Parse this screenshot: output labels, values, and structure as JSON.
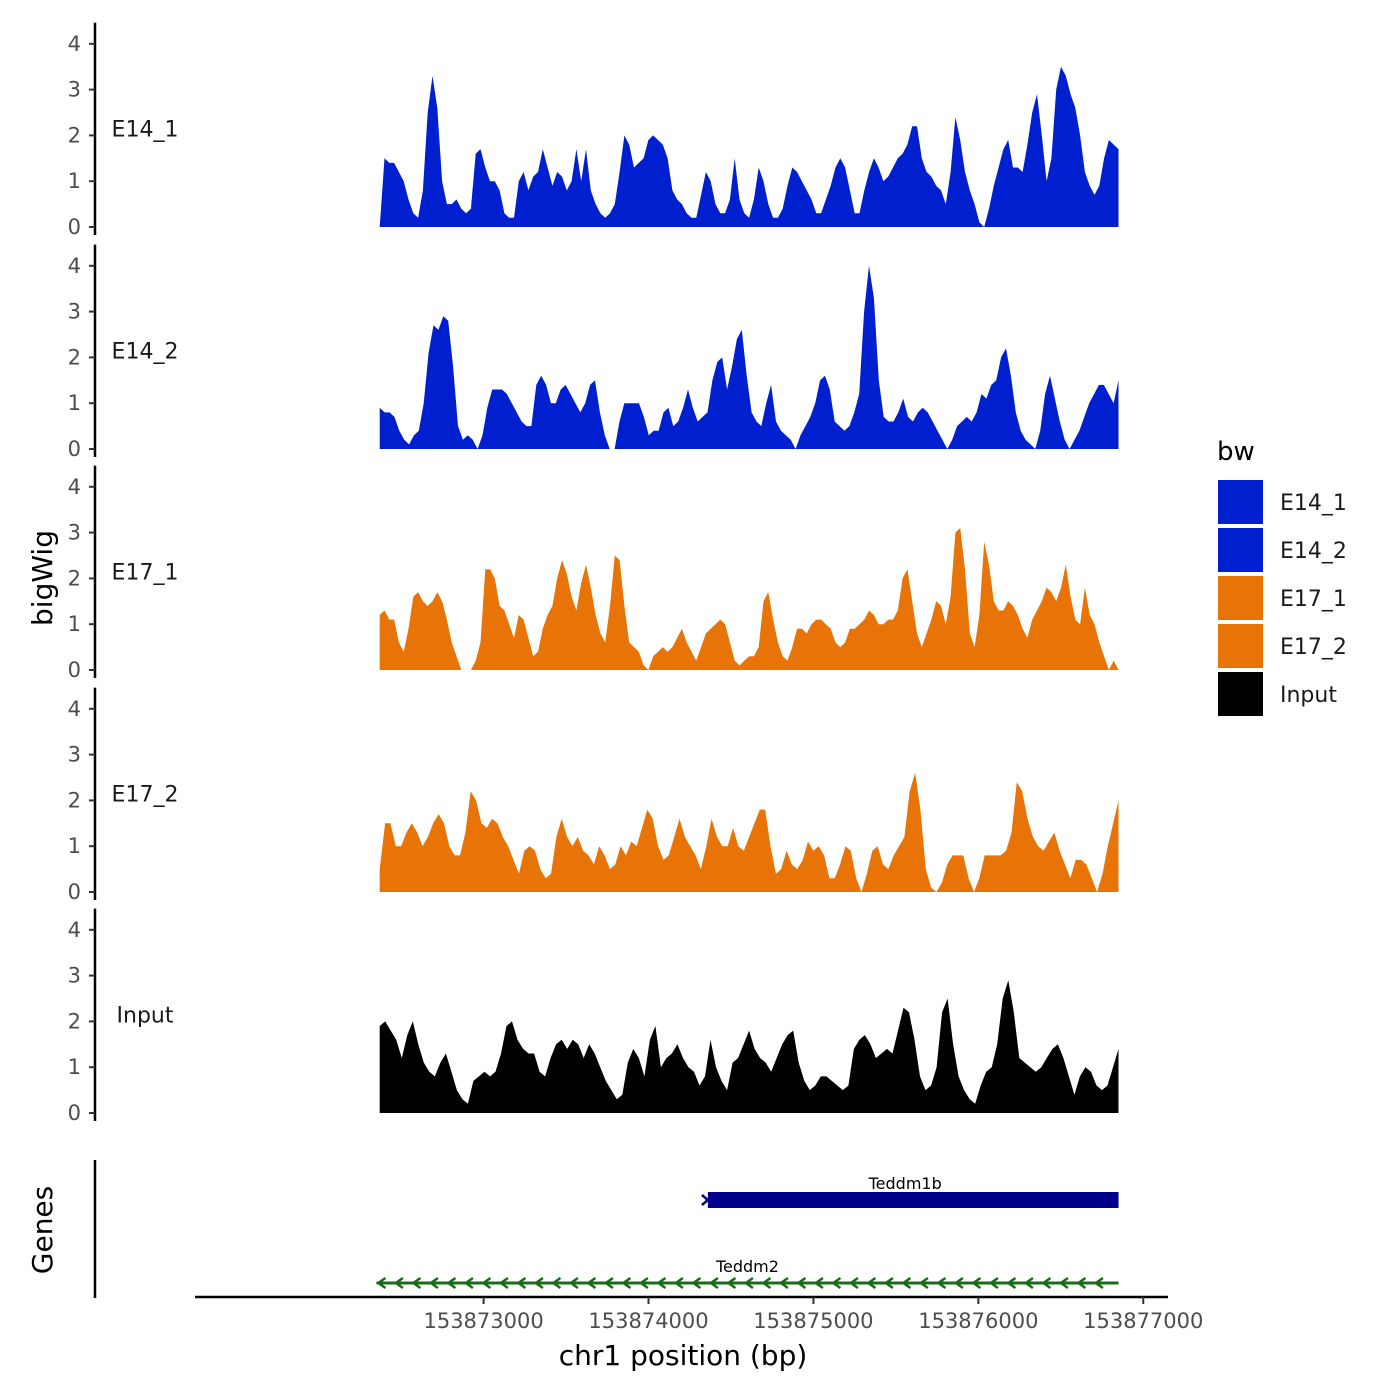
{
  "chart_data": {
    "type": "area",
    "ylabel": "bigWig",
    "xlabel": "chr1 position (bp)",
    "ylim": [
      0,
      4.2
    ],
    "y_ticks": [
      "0",
      "1",
      "2",
      "3",
      "4"
    ],
    "xlim": [
      153871250,
      153877150
    ],
    "x_ticks": [
      {
        "value": 153873000,
        "label": "153873000"
      },
      {
        "value": 153874000,
        "label": "153874000"
      },
      {
        "value": 153875000,
        "label": "153875000"
      },
      {
        "value": 153876000,
        "label": "153876000"
      },
      {
        "value": 153877000,
        "label": "153877000"
      }
    ],
    "x_start": 153872370,
    "x_end": 153876850,
    "series": [
      {
        "name": "E14_1",
        "label": "E14_1",
        "color": "#0020D0",
        "values": [
          0,
          1.5,
          1.4,
          1.4,
          1.2,
          1.0,
          0.6,
          0.3,
          0.2,
          0.8,
          2.5,
          3.3,
          2.6,
          1.0,
          0.5,
          0.5,
          0.6,
          0.4,
          0.3,
          0.4,
          1.6,
          1.7,
          1.3,
          1.0,
          1.0,
          0.8,
          0.3,
          0.2,
          0.2,
          1.0,
          1.2,
          0.8,
          1.1,
          1.2,
          1.7,
          1.3,
          0.9,
          1.2,
          1.1,
          0.8,
          1.0,
          1.7,
          1.0,
          1.7,
          0.8,
          0.5,
          0.3,
          0.2,
          0.3,
          0.5,
          1.2,
          2.0,
          1.8,
          1.3,
          1.4,
          1.5,
          1.9,
          2.0,
          1.9,
          1.8,
          1.5,
          0.8,
          0.6,
          0.5,
          0.3,
          0.2,
          0.2,
          0.7,
          1.2,
          1.0,
          0.5,
          0.3,
          0.3,
          0.6,
          1.5,
          0.6,
          0.3,
          0.2,
          0.6,
          1.3,
          1.0,
          0.5,
          0.2,
          0.2,
          0.4,
          0.9,
          1.3,
          1.2,
          1.0,
          0.8,
          0.6,
          0.3,
          0.3,
          0.6,
          0.9,
          1.3,
          1.5,
          1.3,
          0.8,
          0.3,
          0.3,
          0.8,
          1.2,
          1.5,
          1.3,
          1.0,
          1.1,
          1.3,
          1.5,
          1.6,
          1.8,
          2.2,
          2.2,
          1.5,
          1.2,
          1.1,
          0.9,
          0.8,
          0.5,
          1.2,
          2.4,
          1.9,
          1.2,
          0.8,
          0.5,
          0.1,
          0,
          0.4,
          0.9,
          1.3,
          1.7,
          1.9,
          1.3,
          1.3,
          1.2,
          1.8,
          2.5,
          2.9,
          2.0,
          1.0,
          1.5,
          3.0,
          3.5,
          3.3,
          2.9,
          2.6,
          2.0,
          1.2,
          0.9,
          0.7,
          0.9,
          1.5,
          1.9,
          1.8,
          1.7
        ]
      },
      {
        "name": "E14_2",
        "label": "E14_2",
        "color": "#0020D0",
        "values": [
          0.9,
          0.8,
          0.8,
          0.7,
          0.4,
          0.2,
          0.1,
          0.3,
          0.4,
          1.0,
          2.1,
          2.7,
          2.6,
          2.9,
          2.8,
          1.8,
          0.5,
          0.2,
          0.3,
          0.2,
          0,
          0.3,
          0.9,
          1.3,
          1.3,
          1.3,
          1.2,
          1.0,
          0.8,
          0.6,
          0.5,
          0.5,
          1.4,
          1.6,
          1.4,
          1.0,
          1.0,
          1.3,
          1.4,
          1.2,
          1.0,
          0.8,
          1.0,
          1.4,
          1.5,
          0.8,
          0.3,
          0,
          0,
          0.6,
          1.0,
          1.0,
          1.0,
          1.0,
          0.7,
          0.3,
          0.4,
          0.4,
          0.8,
          0.9,
          0.5,
          0.6,
          0.9,
          1.3,
          0.9,
          0.6,
          0.7,
          0.8,
          1.5,
          1.9,
          2.0,
          1.3,
          1.8,
          2.4,
          2.6,
          1.6,
          0.8,
          0.6,
          0.5,
          1.0,
          1.4,
          0.6,
          0.4,
          0.3,
          0.2,
          0,
          0.3,
          0.5,
          0.7,
          1.0,
          1.5,
          1.6,
          1.3,
          0.6,
          0.5,
          0.4,
          0.5,
          0.8,
          1.2,
          3.0,
          4.0,
          3.3,
          1.5,
          0.7,
          0.6,
          0.6,
          0.8,
          1.1,
          0.7,
          0.6,
          0.8,
          0.9,
          0.8,
          0.6,
          0.4,
          0.2,
          0,
          0.2,
          0.5,
          0.6,
          0.7,
          0.6,
          0.8,
          1.2,
          1.1,
          1.4,
          1.5,
          2.0,
          2.2,
          1.6,
          0.8,
          0.4,
          0.2,
          0.1,
          0,
          0.4,
          1.2,
          1.6,
          1.1,
          0.6,
          0.2,
          0,
          0.2,
          0.4,
          0.7,
          1.0,
          1.2,
          1.4,
          1.4,
          1.2,
          1.0,
          1.5
        ]
      },
      {
        "name": "E17_1",
        "label": "E17_1",
        "color": "#E87306",
        "values": [
          1.2,
          1.3,
          1.1,
          1.1,
          0.6,
          0.4,
          0.9,
          1.6,
          1.7,
          1.5,
          1.4,
          1.5,
          1.7,
          1.5,
          1.1,
          0.6,
          0.3,
          0,
          0,
          0,
          0.2,
          0.6,
          2.2,
          2.2,
          2.0,
          1.4,
          1.3,
          1.0,
          0.7,
          1.2,
          1.1,
          0.7,
          0.3,
          0.4,
          0.9,
          1.2,
          1.4,
          2.0,
          2.4,
          2.1,
          1.6,
          1.3,
          1.9,
          2.3,
          1.8,
          1.2,
          0.8,
          0.6,
          1.4,
          2.5,
          2.4,
          1.4,
          0.6,
          0.5,
          0.4,
          0.1,
          0,
          0.3,
          0.4,
          0.5,
          0.4,
          0.5,
          0.7,
          0.9,
          0.6,
          0.4,
          0.2,
          0.5,
          0.8,
          0.9,
          1.0,
          1.1,
          1.0,
          0.6,
          0.2,
          0.1,
          0.2,
          0.3,
          0.3,
          0.5,
          1.5,
          1.7,
          1.1,
          0.6,
          0.3,
          0.2,
          0.5,
          0.9,
          0.9,
          0.8,
          1.0,
          1.1,
          1.1,
          1.0,
          0.9,
          0.6,
          0.5,
          0.6,
          0.9,
          0.9,
          1.0,
          1.1,
          1.3,
          1.2,
          1.0,
          1.0,
          1.1,
          1.1,
          1.3,
          2.0,
          2.2,
          1.5,
          0.8,
          0.5,
          0.8,
          1.1,
          1.5,
          1.4,
          1.0,
          1.6,
          3.0,
          3.1,
          2.2,
          0.8,
          0.5,
          1.2,
          2.8,
          2.3,
          1.5,
          1.3,
          1.3,
          1.5,
          1.4,
          1.2,
          0.9,
          0.7,
          1.1,
          1.3,
          1.5,
          1.8,
          1.7,
          1.5,
          1.8,
          2.3,
          1.6,
          1.1,
          1.0,
          1.8,
          1.2,
          1.0,
          0.6,
          0.3,
          0,
          0.2,
          0
        ]
      },
      {
        "name": "E17_2",
        "label": "E17_2",
        "color": "#E87306",
        "values": [
          0.5,
          1.5,
          1.5,
          1.0,
          1.0,
          1.3,
          1.5,
          1.3,
          1.0,
          1.2,
          1.5,
          1.7,
          1.5,
          1.0,
          0.8,
          0.8,
          1.3,
          2.2,
          2.0,
          1.5,
          1.4,
          1.6,
          1.5,
          1.2,
          1.0,
          0.7,
          0.4,
          0.9,
          1.0,
          0.9,
          0.5,
          0.3,
          0.4,
          1.2,
          1.6,
          1.2,
          1.0,
          1.2,
          0.9,
          0.8,
          0.6,
          1.0,
          0.8,
          0.5,
          0.6,
          1.0,
          0.8,
          1.1,
          1.0,
          1.4,
          1.8,
          1.6,
          1.0,
          0.7,
          0.8,
          1.2,
          1.6,
          1.2,
          1.0,
          0.8,
          0.5,
          1.0,
          1.6,
          1.2,
          1.0,
          1.0,
          1.4,
          1.0,
          0.9,
          1.2,
          1.5,
          1.8,
          1.8,
          1.0,
          0.4,
          0.5,
          0.9,
          0.6,
          0.5,
          0.7,
          1.1,
          0.9,
          1.0,
          0.8,
          0.3,
          0.3,
          0.6,
          1.0,
          0.9,
          0.3,
          0,
          0.4,
          0.9,
          1.0,
          0.6,
          0.5,
          0.8,
          1.0,
          1.2,
          2.2,
          2.6,
          1.8,
          0.5,
          0.1,
          0,
          0.2,
          0.6,
          0.8,
          0.8,
          0.8,
          0.3,
          0,
          0.3,
          0.8,
          0.8,
          0.8,
          0.8,
          0.9,
          1.3,
          2.4,
          2.2,
          1.6,
          1.2,
          1.0,
          0.9,
          1.1,
          1.3,
          0.9,
          0.6,
          0.3,
          0.7,
          0.7,
          0.6,
          0.3,
          0,
          0.4,
          1.0,
          1.5,
          2.0
        ]
      },
      {
        "name": "Input",
        "label": "Input",
        "color": "#000000",
        "values": [
          1.9,
          2.0,
          1.8,
          1.6,
          1.2,
          1.7,
          2.0,
          1.5,
          1.1,
          0.9,
          0.8,
          1.1,
          1.3,
          0.9,
          0.5,
          0.3,
          0.2,
          0.7,
          0.8,
          0.9,
          0.8,
          0.9,
          1.3,
          1.9,
          2.0,
          1.6,
          1.4,
          1.3,
          1.3,
          0.9,
          0.8,
          1.2,
          1.5,
          1.6,
          1.4,
          1.6,
          1.5,
          1.2,
          1.5,
          1.3,
          1.0,
          0.7,
          0.5,
          0.3,
          0.4,
          1.1,
          1.4,
          1.2,
          0.8,
          1.6,
          1.9,
          1.0,
          1.2,
          1.3,
          1.5,
          1.2,
          1.0,
          0.9,
          0.6,
          0.8,
          1.6,
          1.0,
          0.7,
          0.5,
          1.1,
          1.2,
          1.5,
          1.8,
          1.4,
          1.2,
          1.1,
          0.9,
          1.2,
          1.5,
          1.7,
          1.8,
          1.1,
          0.7,
          0.5,
          0.6,
          0.8,
          0.8,
          0.7,
          0.6,
          0.5,
          0.6,
          1.4,
          1.6,
          1.7,
          1.5,
          1.2,
          1.3,
          1.4,
          1.3,
          1.8,
          2.3,
          2.2,
          1.6,
          0.8,
          0.5,
          0.6,
          1.0,
          2.2,
          2.5,
          1.5,
          0.8,
          0.5,
          0.3,
          0.2,
          0.6,
          0.9,
          1.0,
          1.5,
          2.5,
          2.9,
          2.2,
          1.2,
          1.1,
          1.0,
          0.9,
          1.0,
          1.2,
          1.4,
          1.5,
          1.2,
          0.8,
          0.4,
          0.8,
          1.0,
          0.9,
          0.6,
          0.5,
          0.6,
          1.0,
          1.4
        ]
      }
    ],
    "gene_axis_title": "Genes",
    "genes": [
      {
        "name": "Teddm1b",
        "start": 153874360,
        "end": 153876850,
        "strand": "+",
        "color": "#00008B"
      },
      {
        "name": "Teddm2",
        "start": 153872350,
        "end": 153876850,
        "strand": "-",
        "color": "#1A6B1A"
      }
    ],
    "legend": {
      "title": "bw",
      "items": [
        {
          "label": "E14_1",
          "color": "#0020D0"
        },
        {
          "label": "E14_2",
          "color": "#0020D0"
        },
        {
          "label": "E17_1",
          "color": "#E87306"
        },
        {
          "label": "E17_2",
          "color": "#E87306"
        },
        {
          "label": "Input",
          "color": "#000000"
        }
      ]
    }
  }
}
